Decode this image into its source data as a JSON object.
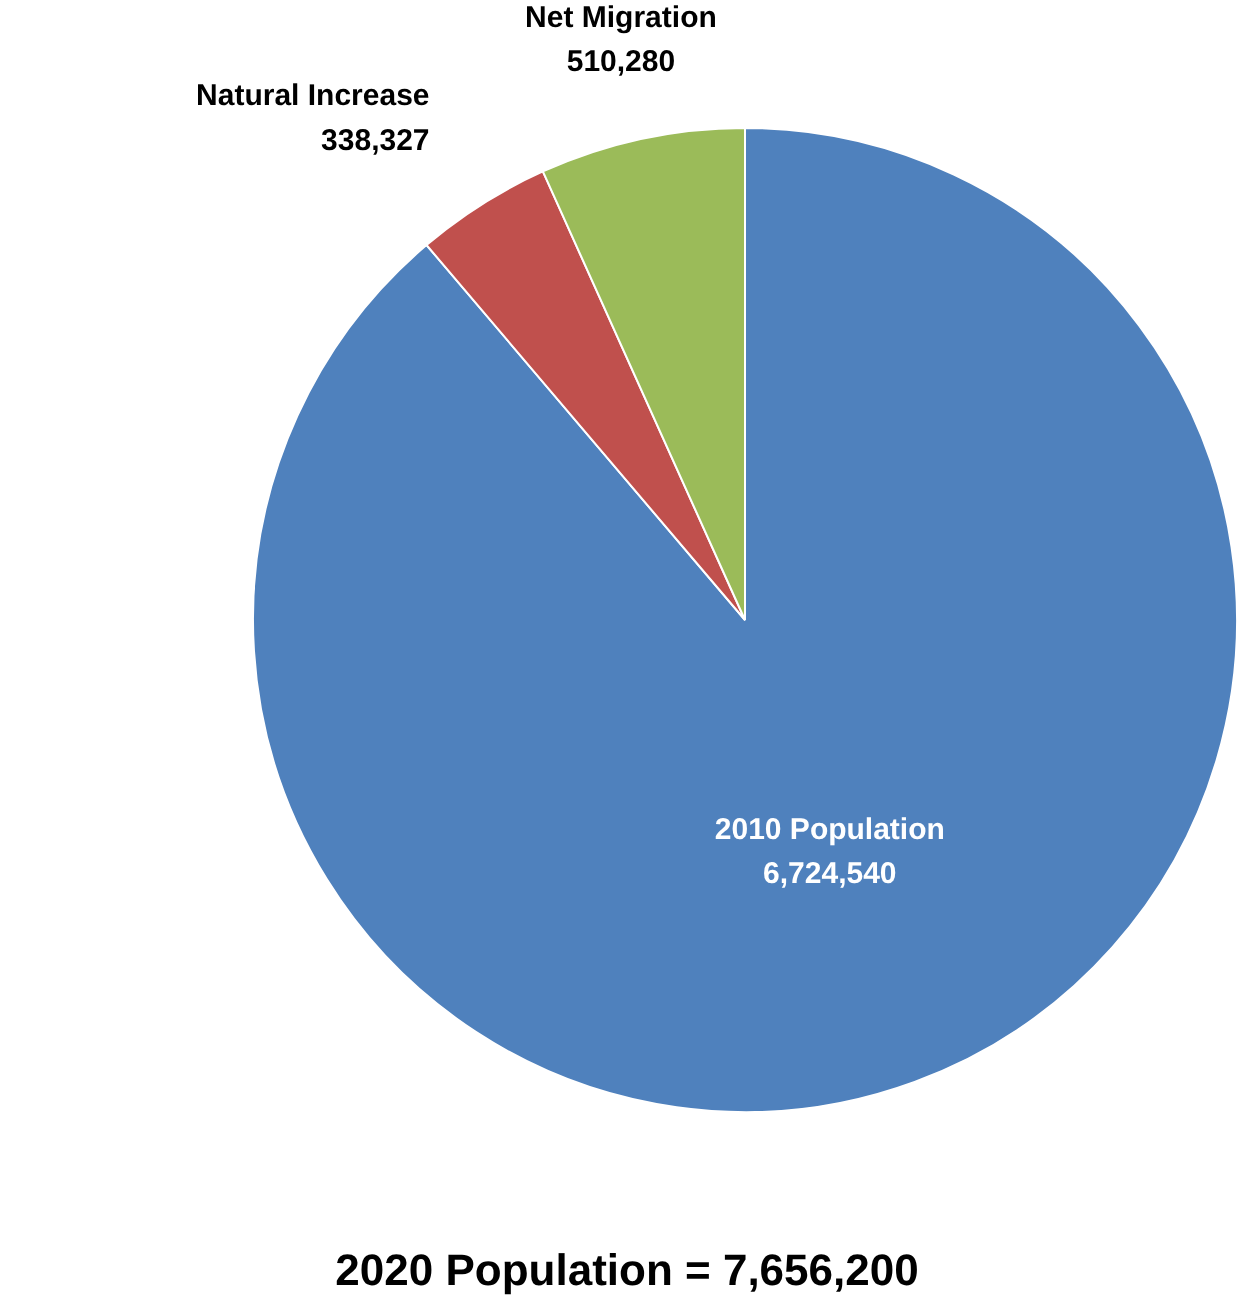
{
  "chart_data": {
    "type": "pie",
    "title": "2020 Population = 7,656,200",
    "categories": [
      "2010 Population",
      "Natural Increase",
      "Net Migration"
    ],
    "values": [
      6724540,
      338327,
      510280
    ],
    "colors": [
      "#4f81bd",
      "#c0504d",
      "#9bbb59"
    ],
    "value_labels": [
      "6,724,540",
      "338,327",
      "510,280"
    ]
  }
}
